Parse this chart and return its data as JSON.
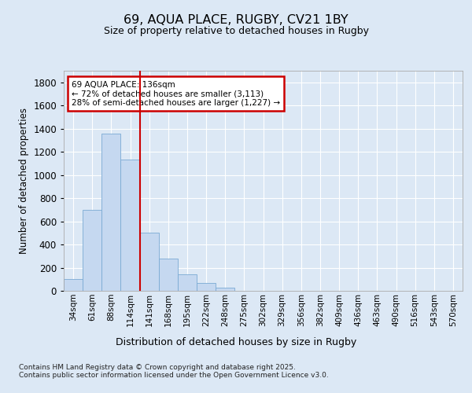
{
  "title1": "69, AQUA PLACE, RUGBY, CV21 1BY",
  "title2": "Size of property relative to detached houses in Rugby",
  "xlabel": "Distribution of detached houses by size in Rugby",
  "ylabel": "Number of detached properties",
  "categories": [
    "34sqm",
    "61sqm",
    "88sqm",
    "114sqm",
    "141sqm",
    "168sqm",
    "195sqm",
    "222sqm",
    "248sqm",
    "275sqm",
    "302sqm",
    "329sqm",
    "356sqm",
    "382sqm",
    "409sqm",
    "436sqm",
    "463sqm",
    "490sqm",
    "516sqm",
    "543sqm",
    "570sqm"
  ],
  "values": [
    100,
    700,
    1360,
    1130,
    500,
    280,
    145,
    70,
    25,
    3,
    0,
    0,
    0,
    0,
    0,
    0,
    3,
    0,
    0,
    0,
    0
  ],
  "bar_color": "#c5d8f0",
  "bar_edgecolor": "#7aaad4",
  "vline_index": 4,
  "vline_color": "#cc0000",
  "annotation_text": "69 AQUA PLACE: 136sqm\n← 72% of detached houses are smaller (3,113)\n28% of semi-detached houses are larger (1,227) →",
  "annotation_box_edgecolor": "#cc0000",
  "ylim": [
    0,
    1900
  ],
  "yticks": [
    0,
    200,
    400,
    600,
    800,
    1000,
    1200,
    1400,
    1600,
    1800
  ],
  "bg_color": "#dce8f5",
  "plot_bg_color": "#dce8f5",
  "grid_color": "#ffffff",
  "footer1": "Contains HM Land Registry data © Crown copyright and database right 2025.",
  "footer2": "Contains public sector information licensed under the Open Government Licence v3.0."
}
